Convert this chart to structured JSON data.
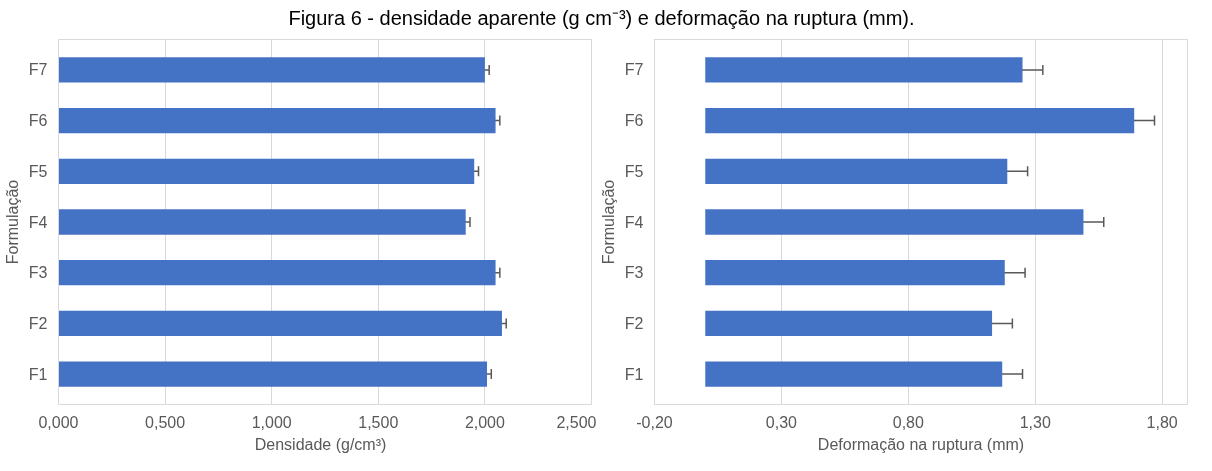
{
  "chart_data": [
    {
      "type": "bar",
      "title": "Figura 6 - densidade aparente (g cm⁻³) e deformação na ruptura (mm).",
      "orientation": "horizontal",
      "categories": [
        "F7",
        "F6",
        "F5",
        "F4",
        "F3",
        "F2",
        "F1"
      ],
      "values": [
        2.0,
        2.05,
        1.95,
        1.91,
        2.05,
        2.08,
        2.01
      ],
      "errors": [
        0.02,
        0.02,
        0.02,
        0.02,
        0.02,
        0.02,
        0.02
      ],
      "color": "#4472c4",
      "xlabel": "Densidade   (g/cm³)",
      "ylabel": "Formulação",
      "xlim": [
        0,
        2.5
      ],
      "xticks": [
        {
          "value": 0,
          "label": "0,000"
        },
        {
          "value": 0.5,
          "label": "0,500"
        },
        {
          "value": 1.0,
          "label": "1,000"
        },
        {
          "value": 1.5,
          "label": "1,500"
        },
        {
          "value": 2.0,
          "label": "2,000"
        },
        {
          "value": 2.5,
          "label": "2,500"
        }
      ],
      "grid": "x"
    },
    {
      "type": "bar",
      "orientation": "horizontal",
      "categories": [
        "F7",
        "F6",
        "F5",
        "F4",
        "F3",
        "F2",
        "F1"
      ],
      "values": [
        1.25,
        1.69,
        1.19,
        1.49,
        1.18,
        1.13,
        1.17
      ],
      "errors": [
        0.08,
        0.08,
        0.08,
        0.08,
        0.08,
        0.08,
        0.08
      ],
      "color": "#4472c4",
      "xlabel": "Deformação na ruptura (mm)",
      "ylabel": "Formulação",
      "xlim": [
        -0.2,
        1.9
      ],
      "xticks": [
        {
          "value": -0.2,
          "label": "-0,20"
        },
        {
          "value": 0.3,
          "label": "0,30"
        },
        {
          "value": 0.8,
          "label": "0,80"
        },
        {
          "value": 1.3,
          "label": "1,30"
        },
        {
          "value": 1.8,
          "label": "1,80"
        }
      ],
      "grid": "x"
    }
  ]
}
